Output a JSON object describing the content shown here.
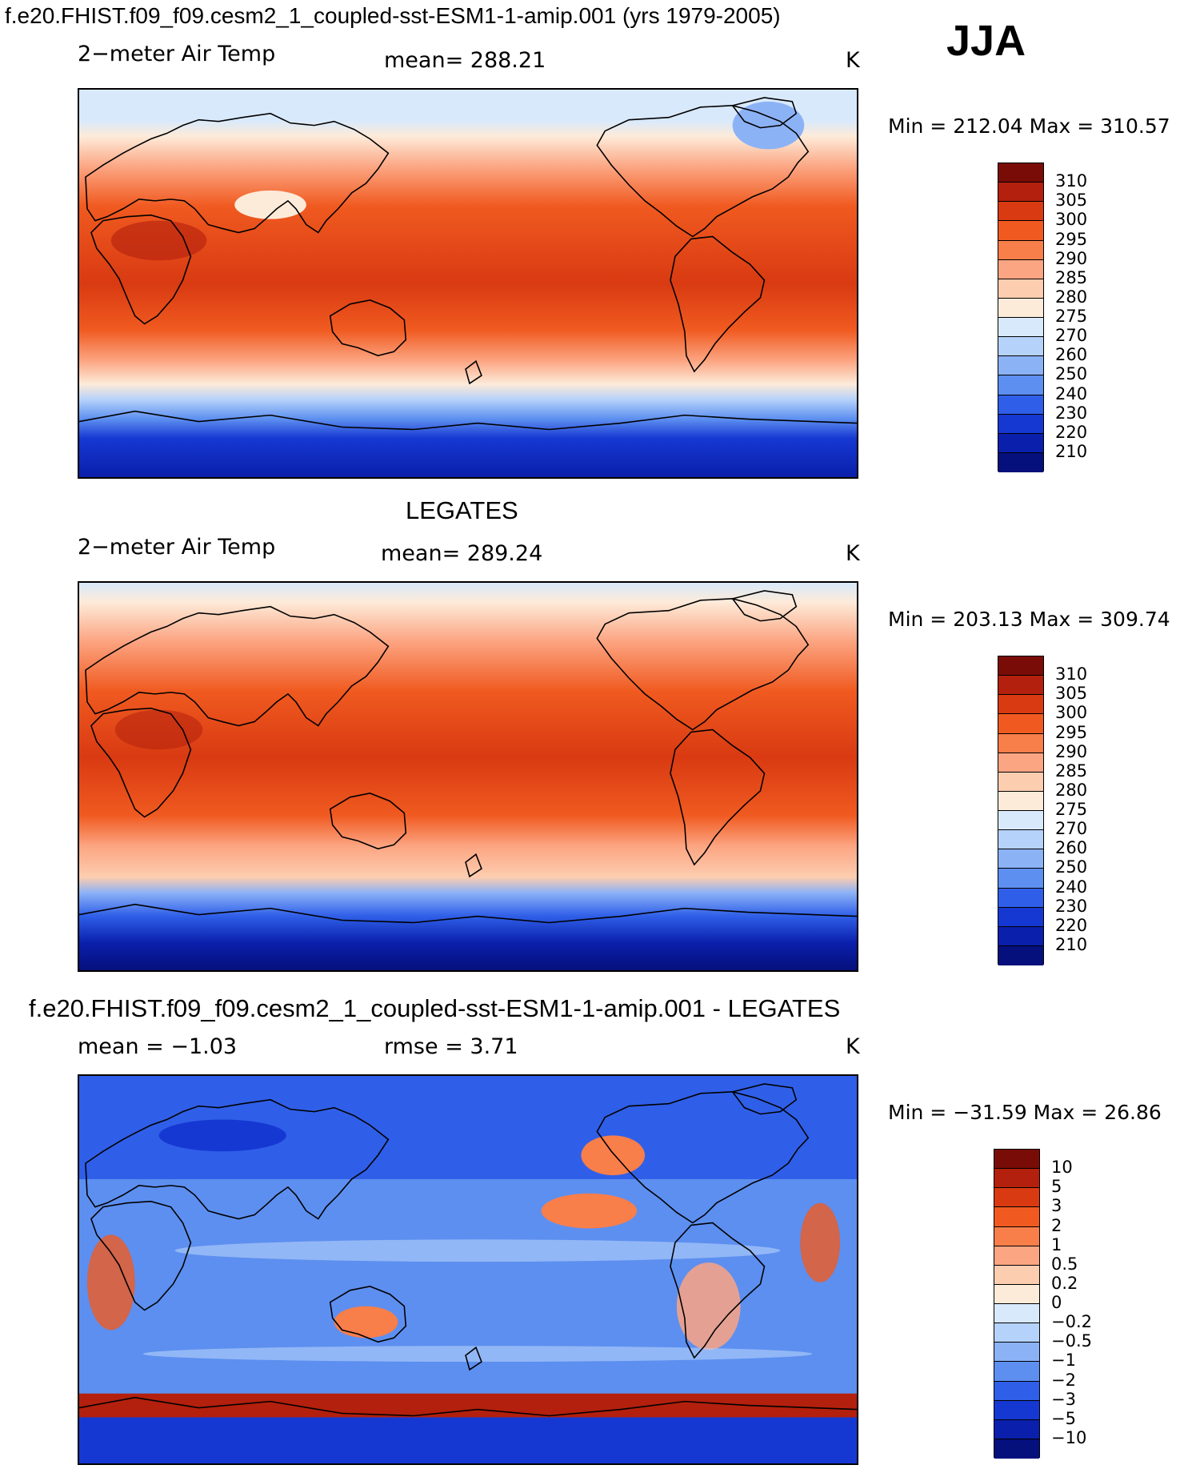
{
  "header": {
    "title": "f.e20.FHIST.f09_f09.cesm2_1_coupled-sst-ESM1-1-amip.001 (yrs 1979-2005)",
    "season": "JJA"
  },
  "panel1": {
    "variable": "2−meter Air Temp",
    "mean_text": "mean=  288.21",
    "units": "K",
    "minmax": "Min  =  212.04  Max  =  310.57"
  },
  "panel2": {
    "title": "LEGATES",
    "variable": "2−meter Air Temp",
    "mean_text": "mean=  289.24",
    "units": "K",
    "minmax": "Min  =  203.13  Max  =  309.74"
  },
  "panel3": {
    "title": "f.e20.FHIST.f09_f09.cesm2_1_coupled-sst-ESM1-1-amip.001 - LEGATES",
    "mean_text": "mean  =     −1.03",
    "rmse_text": "rmse  =     3.71",
    "units": "K",
    "minmax": "Min  =  −31.59  Max  =    26.86"
  },
  "colorbar_temp": {
    "labels": [
      "310",
      "305",
      "300",
      "295",
      "290",
      "285",
      "280",
      "275",
      "270",
      "260",
      "250",
      "240",
      "230",
      "220",
      "210"
    ],
    "colors": [
      "#7a0c07",
      "#b3200d",
      "#d93a12",
      "#f05a20",
      "#f87e4a",
      "#fca582",
      "#fdcdb0",
      "#fdebd9",
      "#d8e9fb",
      "#b5d2fa",
      "#8cb2f6",
      "#5d8ff0",
      "#2f5fe8",
      "#1638d2",
      "#0a1fab",
      "#05107c"
    ]
  },
  "colorbar_diff": {
    "labels": [
      "10",
      "5",
      "3",
      "2",
      "1",
      "0.5",
      "0.2",
      "0",
      "−0.2",
      "−0.5",
      "−1",
      "−2",
      "−3",
      "−5",
      "−10"
    ],
    "colors": [
      "#7a0c07",
      "#b3200d",
      "#d93a12",
      "#f05a20",
      "#f87e4a",
      "#fca582",
      "#fdcdb0",
      "#fdebd9",
      "#d8e9fb",
      "#b5d2fa",
      "#8cb2f6",
      "#5d8ff0",
      "#2f5fe8",
      "#1638d2",
      "#0a1fab",
      "#05107c"
    ]
  }
}
